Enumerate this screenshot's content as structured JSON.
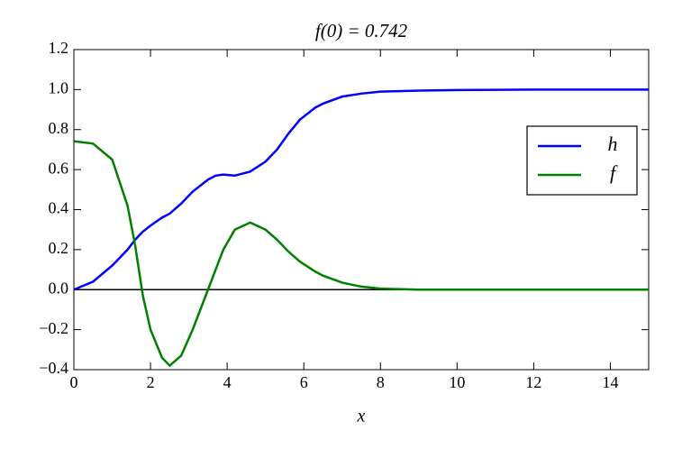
{
  "chart_data": {
    "type": "line",
    "title": "f(0) = 0.742",
    "x_label": "x",
    "x": [
      0,
      0.5,
      1,
      1.4,
      1.6,
      1.8,
      2,
      2.3,
      2.5,
      2.8,
      3.1,
      3.5,
      3.7,
      3.9,
      4.2,
      4.6,
      5,
      5.3,
      5.6,
      5.9,
      6.3,
      6.5,
      7,
      7.5,
      8,
      9,
      10,
      12,
      15
    ],
    "series": [
      {
        "name": "h",
        "color": "#0000ff",
        "values": [
          0,
          0.04,
          0.12,
          0.2,
          0.25,
          0.29,
          0.32,
          0.36,
          0.38,
          0.43,
          0.49,
          0.55,
          0.57,
          0.575,
          0.57,
          0.59,
          0.64,
          0.7,
          0.78,
          0.85,
          0.91,
          0.93,
          0.965,
          0.98,
          0.99,
          0.995,
          0.998,
          1.0,
          1.0
        ]
      },
      {
        "name": "f",
        "color": "#008000",
        "values": [
          0.742,
          0.73,
          0.65,
          0.42,
          0.22,
          -0.03,
          -0.2,
          -0.34,
          -0.38,
          -0.33,
          -0.2,
          0,
          0.1,
          0.2,
          0.3,
          0.335,
          0.3,
          0.25,
          0.19,
          0.14,
          0.09,
          0.07,
          0.035,
          0.015,
          0.005,
          0,
          0,
          0,
          0
        ]
      }
    ],
    "hline": 0,
    "xlim": [
      0,
      15
    ],
    "xticks": [
      0,
      2,
      4,
      6,
      8,
      10,
      12,
      14
    ],
    "ylim": [
      -0.4,
      1.2
    ],
    "yticks": [
      {
        "value": -0.4,
        "label": "−0.4"
      },
      {
        "value": -0.2,
        "label": "−0.2"
      },
      {
        "value": 0,
        "label": "0.0"
      },
      0.2,
      0.4,
      0.6,
      0.8,
      {
        "value": 1,
        "label": "1.0"
      },
      1.2
    ],
    "grid": false,
    "legend": "right"
  }
}
